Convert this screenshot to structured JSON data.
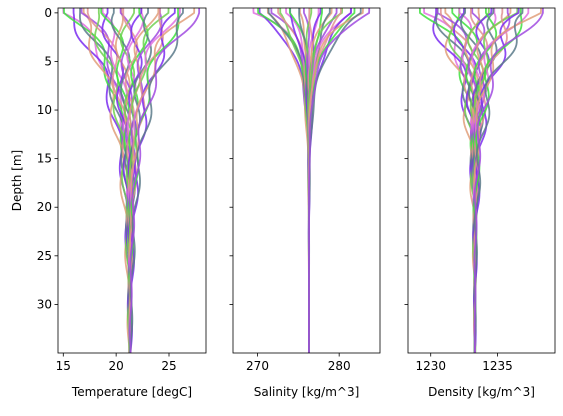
{
  "chart_data": [
    {
      "type": "line",
      "ylabel": "Depth [m]",
      "xlabel": "Temperature [degC]",
      "y_inverted": true,
      "ylim": [
        35,
        -0.5
      ],
      "xlim": [
        14.5,
        28.5
      ],
      "yticks": [
        0,
        5,
        10,
        15,
        20,
        25,
        30
      ],
      "xticks": [
        15,
        20,
        25
      ],
      "profile": {
        "deep_value": 21.3,
        "surface_min": 15.0,
        "surface_max": 27.5,
        "decay_depth": 7.0,
        "oscillation": 0.8
      }
    },
    {
      "type": "line",
      "ylabel": "",
      "xlabel": "Salinity [kg/m^3]",
      "y_inverted": true,
      "ylim": [
        35,
        -0.5
      ],
      "xlim": [
        267,
        285
      ],
      "yticks": [
        0,
        5,
        10,
        15,
        20,
        25,
        30
      ],
      "xticks": [
        270,
        280
      ],
      "profile": {
        "deep_value": 276.3,
        "surface_min": 269.5,
        "surface_max": 283.5,
        "decay_depth": 3.2,
        "oscillation": 0.4
      }
    },
    {
      "type": "line",
      "ylabel": "",
      "xlabel": "Density [kg/m^3]",
      "y_inverted": true,
      "ylim": [
        35,
        -0.5
      ],
      "xlim": [
        1228.3,
        1239.3
      ],
      "yticks": [
        0,
        5,
        10,
        15,
        20,
        25,
        30
      ],
      "xticks": [
        1230,
        1235
      ],
      "profile": {
        "deep_value": 1233.3,
        "surface_min": 1229.5,
        "surface_max": 1238.0,
        "decay_depth": 5.0,
        "oscillation": 0.9
      }
    }
  ],
  "series_count": 30,
  "series_colors": [
    "#e06fe0",
    "#7a2cf0",
    "#3ee03e",
    "#e09f7a",
    "#5a7a8a",
    "#a04ae0",
    "#70d050",
    "#e09090"
  ]
}
